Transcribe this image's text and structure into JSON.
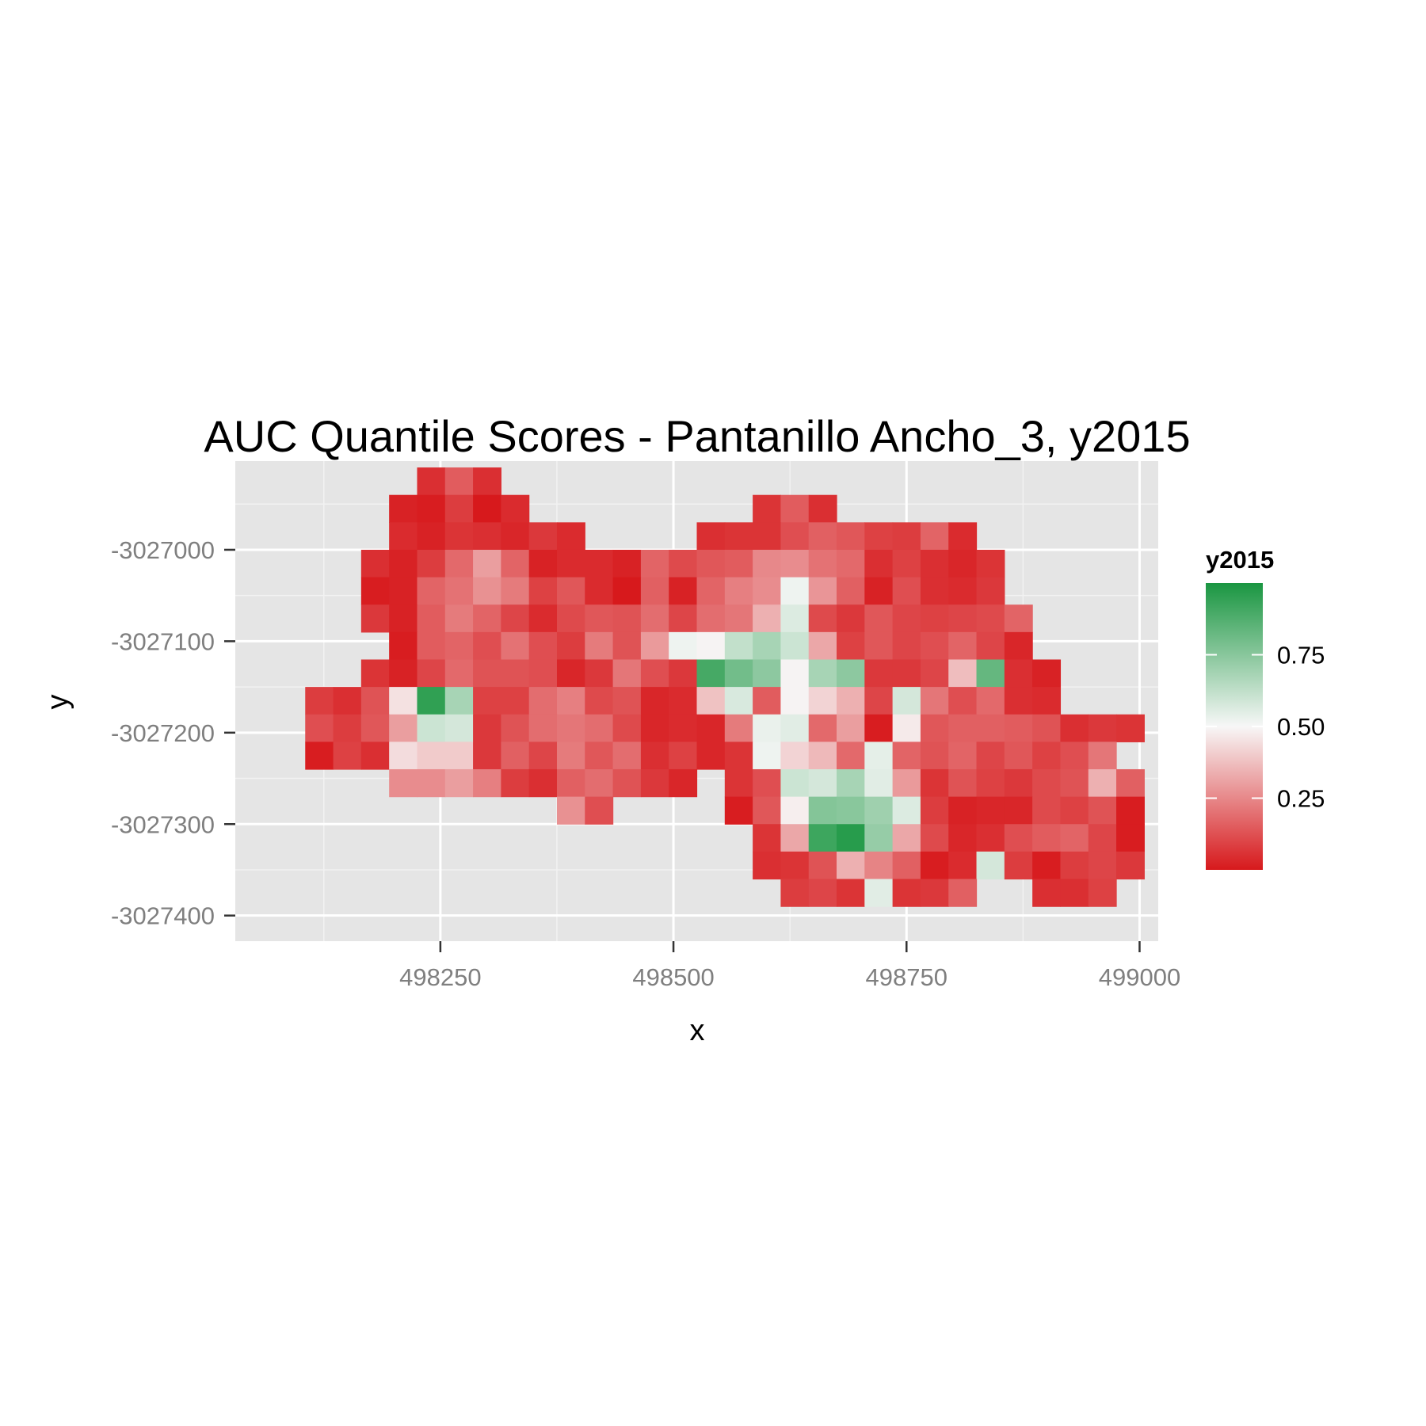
{
  "chart_data": {
    "type": "heatmap",
    "title": "AUC Quantile Scores - Pantanillo Ancho_3, y2015",
    "xlabel": "x",
    "ylabel": "y",
    "x_ticks": [
      498250,
      498500,
      498750,
      499000
    ],
    "y_ticks": [
      -3027000,
      -3027100,
      -3027200,
      -3027300,
      -3027400
    ],
    "x_tick_labels": [
      "498250",
      "498500",
      "498750",
      "499000"
    ],
    "y_tick_labels": [
      "-3027000",
      "-3027100",
      "-3027200",
      "-3027300",
      "-3027400"
    ],
    "xlim": [
      498030,
      499020
    ],
    "ylim": [
      -3027428,
      -3026903
    ],
    "grid": true,
    "cell_size": 30,
    "x_origin": 498090,
    "y_origin": -3026925,
    "legend": {
      "title": "y2015",
      "placement": "right",
      "breaks": [
        0.25,
        0.5,
        0.75
      ],
      "labels": [
        "0.25",
        "0.50",
        "0.75"
      ],
      "range": [
        0,
        1
      ]
    },
    "colors": {
      "low": "#d7191c",
      "mid": "#f7f7f7",
      "high": "#1a9641",
      "panel": "#e5e5e5",
      "grid_major": "#ffffff",
      "grid_minor": "#f2f2f2"
    },
    "rows": [
      [
        "",
        "",
        "",
        "",
        "",
        "0.05",
        "0.15",
        "0.05",
        "",
        "",
        "",
        "",
        "",
        "",
        "",
        "",
        "",
        "",
        "",
        "",
        "",
        "",
        "",
        "",
        "",
        "",
        "",
        "",
        "",
        "",
        "",
        "",
        "",
        "",
        ""
      ],
      [
        "",
        "",
        "",
        "",
        "0.02",
        "0.01",
        "0.08",
        "0.00",
        "0.04",
        "",
        "",
        "",
        "",
        "",
        "",
        "",
        "",
        "0.06",
        "0.15",
        "0.05",
        "",
        "",
        "",
        "",
        "",
        "",
        "",
        "",
        "",
        "",
        "",
        "",
        "",
        "",
        ""
      ],
      [
        "",
        "",
        "",
        "",
        "0.04",
        "0.02",
        "0.06",
        "0.05",
        "0.03",
        "0.07",
        "0.04",
        "",
        "",
        "",
        "",
        "0.05",
        "0.06",
        "0.06",
        "0.12",
        "0.16",
        "0.14",
        "0.09",
        "0.08",
        "0.17",
        "0.04",
        "",
        "",
        "",
        "",
        "",
        "",
        "",
        "",
        "",
        ""
      ],
      [
        "",
        "",
        "",
        "0.05",
        "0.02",
        "0.08",
        "0.18",
        "0.30",
        "0.17",
        "0.02",
        "0.04",
        "0.04",
        "0.02",
        "0.17",
        "0.11",
        "0.14",
        "0.15",
        "0.25",
        "0.26",
        "0.20",
        "0.18",
        "0.05",
        "0.09",
        "0.05",
        "0.03",
        "0.06",
        "",
        "",
        "",
        "",
        "",
        "",
        "",
        "",
        ""
      ],
      [
        "",
        "",
        "",
        "0.01",
        "0.02",
        "0.17",
        "0.20",
        "0.27",
        "0.22",
        "0.09",
        "0.14",
        "0.04",
        "0.00",
        "0.16",
        "0.02",
        "0.17",
        "0.23",
        "0.26",
        "0.52",
        "0.28",
        "0.16",
        "0.02",
        "0.12",
        "0.05",
        "0.04",
        "0.07",
        "",
        "",
        "",
        "",
        "",
        "",
        "",
        "",
        ""
      ],
      [
        "",
        "",
        "",
        "0.07",
        "0.02",
        "0.15",
        "0.22",
        "0.17",
        "0.10",
        "0.04",
        "0.11",
        "0.14",
        "0.13",
        "0.19",
        "0.10",
        "0.19",
        "0.21",
        "0.34",
        "0.56",
        "0.11",
        "0.07",
        "0.14",
        "0.10",
        "0.09",
        "0.10",
        "0.11",
        "0.17",
        "",
        "",
        "",
        "",
        "",
        "",
        "",
        ""
      ],
      [
        "",
        "",
        "",
        "",
        "0.01",
        "0.15",
        "0.17",
        "0.12",
        "0.20",
        "0.12",
        "0.08",
        "0.22",
        "0.13",
        "0.29",
        "0.52",
        "0.49",
        "0.62",
        "0.68",
        "0.60",
        "0.32",
        "0.09",
        "0.14",
        "0.10",
        "0.12",
        "0.17",
        "0.10",
        "0.03",
        "",
        "",
        "",
        "",
        "",
        "",
        "",
        ""
      ],
      [
        "",
        "",
        "",
        "0.06",
        "0.02",
        "0.10",
        "0.18",
        "0.13",
        "0.13",
        "0.12",
        "0.03",
        "0.07",
        "0.21",
        "0.12",
        "0.07",
        "0.90",
        "0.80",
        "0.74",
        "0.49",
        "0.68",
        "0.74",
        "0.07",
        "0.07",
        "0.10",
        "0.37",
        "0.83",
        "0.05",
        "0.02",
        "",
        "",
        "",
        "",
        "",
        "",
        ""
      ],
      [
        "",
        "0.08",
        "0.05",
        "0.13",
        "0.45",
        "0.95",
        "0.68",
        "0.09",
        "0.09",
        "0.19",
        "0.23",
        "0.11",
        "0.13",
        "0.03",
        "0.04",
        "0.38",
        "0.57",
        "0.15",
        "0.49",
        "0.42",
        "0.34",
        "0.10",
        "0.58",
        "0.21",
        "0.12",
        "0.18",
        "0.05",
        "0.04",
        "",
        "",
        "",
        "",
        "",
        "",
        ""
      ],
      [
        "",
        "0.12",
        "0.08",
        "0.14",
        "0.30",
        "0.60",
        "0.58",
        "0.07",
        "0.13",
        "0.19",
        "0.21",
        "0.19",
        "0.11",
        "0.03",
        "0.04",
        "0.03",
        "0.22",
        "0.53",
        "0.55",
        "0.18",
        "0.30",
        "0.01",
        "0.47",
        "0.14",
        "0.16",
        "0.16",
        "0.15",
        "0.13",
        "0.05",
        "0.07",
        "0.06",
        "",
        "",
        "",
        ""
      ],
      [
        "",
        "0.01",
        "0.09",
        "0.05",
        "0.44",
        "0.40",
        "0.40",
        "0.07",
        "0.16",
        "0.10",
        "0.22",
        "0.14",
        "0.19",
        "0.05",
        "0.09",
        "0.03",
        "0.06",
        "0.52",
        "0.42",
        "0.36",
        "0.18",
        "0.54",
        "0.17",
        "0.13",
        "0.17",
        "0.10",
        "0.14",
        "0.09",
        "0.12",
        "0.21",
        "",
        "",
        "",
        "",
        ""
      ],
      [
        "",
        "",
        "",
        "",
        "0.26",
        "0.26",
        "0.30",
        "0.23",
        "0.08",
        "0.05",
        "0.16",
        "0.19",
        "0.13",
        "0.07",
        "0.03",
        "",
        "0.06",
        "0.12",
        "0.60",
        "0.58",
        "0.68",
        "0.55",
        "0.29",
        "0.06",
        "0.13",
        "0.09",
        "0.07",
        "0.11",
        "0.13",
        "0.34",
        "0.16",
        "",
        "",
        "",
        ""
      ],
      [
        "",
        "",
        "",
        "",
        "",
        "",
        "",
        "",
        "",
        "",
        "0.27",
        "0.12",
        "",
        "",
        "",
        "",
        "0.01",
        "0.14",
        "0.48",
        "0.76",
        "0.75",
        "0.70",
        "0.56",
        "0.08",
        "0.02",
        "0.03",
        "0.03",
        "0.11",
        "0.09",
        "0.13",
        "0.01",
        "",
        "",
        "",
        ""
      ],
      [
        "",
        "",
        "",
        "",
        "",
        "",
        "",
        "",
        "",
        "",
        "",
        "",
        "",
        "",
        "",
        "",
        "",
        "0.06",
        "0.32",
        "0.92",
        "0.97",
        "0.72",
        "0.32",
        "0.11",
        "0.03",
        "0.05",
        "0.12",
        "0.15",
        "0.17",
        "0.10",
        "0.01",
        "",
        "",
        "",
        ""
      ],
      [
        "",
        "",
        "",
        "",
        "",
        "",
        "",
        "",
        "",
        "",
        "",
        "",
        "",
        "",
        "",
        "",
        "",
        "0.05",
        "0.06",
        "0.13",
        "0.34",
        "0.24",
        "0.16",
        "0.01",
        "0.04",
        "0.58",
        "0.08",
        "0.01",
        "0.08",
        "0.10",
        "0.07",
        "",
        "",
        "",
        ""
      ],
      [
        "",
        "",
        "",
        "",
        "",
        "",
        "",
        "",
        "",
        "",
        "",
        "",
        "",
        "",
        "",
        "",
        "",
        "",
        "0.08",
        "0.10",
        "0.06",
        "0.55",
        "0.06",
        "0.07",
        "0.16",
        "",
        "",
        "0.05",
        "0.05",
        "0.09",
        "",
        "",
        "",
        "",
        ""
      ]
    ]
  }
}
